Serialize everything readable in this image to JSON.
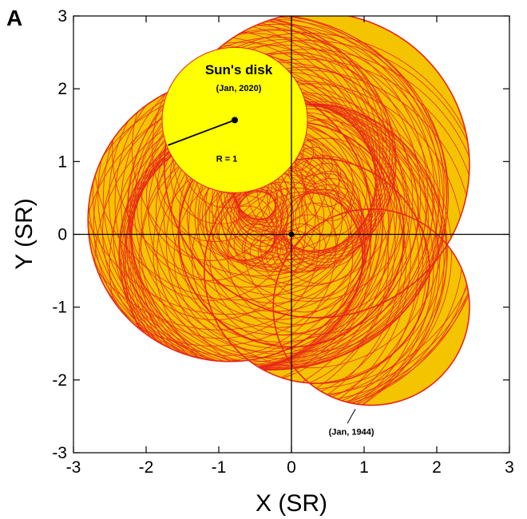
{
  "chart_data": {
    "type": "line",
    "panel_label": "A",
    "xlabel": "X (SR)",
    "ylabel": "Y (SR)",
    "xlim": [
      -3,
      3
    ],
    "ylim": [
      -3,
      3
    ],
    "x_ticks": [
      -3,
      -2,
      -1,
      0,
      1,
      2,
      3
    ],
    "y_ticks": [
      -3,
      -2,
      -1,
      0,
      1,
      2,
      3
    ],
    "grid": false,
    "colors": {
      "trace_line": "#e8251a",
      "trace_fill": "#f5c400",
      "sun_disk": "#ffff00",
      "axes": "#000000"
    },
    "sun_disk": {
      "label": "Sun's disk",
      "date": "(Jan, 2020)",
      "center": [
        -0.78,
        1.57
      ],
      "radius": 1,
      "radius_label": "R = 1"
    },
    "origin_marker": [
      0,
      0
    ],
    "trajectory_annotation": {
      "label": "(Jan, 1944)",
      "point": [
        0.88,
        -2.4
      ]
    },
    "envelope_regions": [
      {
        "center": [
          0.35,
          0.95
        ],
        "radius": 2.1
      },
      {
        "center": [
          -0.85,
          0.2
        ],
        "radius": 1.95
      },
      {
        "center": [
          0.0,
          0.0
        ],
        "radius": 1.55
      },
      {
        "center": [
          0.35,
          -0.5
        ],
        "radius": 1.55
      },
      {
        "center": [
          1.1,
          -1.0
        ],
        "radius": 1.35
      }
    ]
  }
}
